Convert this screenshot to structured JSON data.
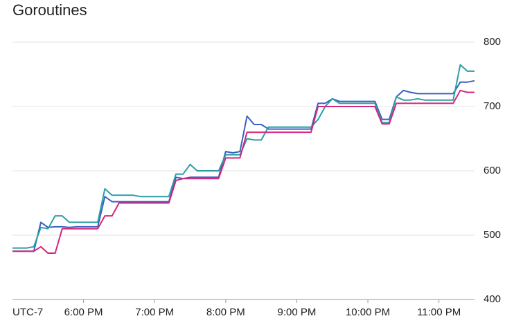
{
  "chart_data": {
    "type": "line",
    "title": "Goroutines",
    "timezone": "UTC-7",
    "x": [
      17,
      17.1,
      17.2,
      17.3,
      17.4,
      17.5,
      17.6,
      17.7,
      17.8,
      17.9,
      18,
      18.1,
      18.2,
      18.3,
      18.4,
      18.5,
      18.6,
      18.7,
      18.8,
      18.9,
      19,
      19.1,
      19.2,
      19.3,
      19.4,
      19.5,
      19.6,
      19.7,
      19.8,
      19.9,
      20,
      20.1,
      20.2,
      20.3,
      20.4,
      20.5,
      20.6,
      20.7,
      20.8,
      20.9,
      21,
      21.1,
      21.2,
      21.3,
      21.4,
      21.5,
      21.6,
      21.7,
      21.8,
      21.9,
      22,
      22.1,
      22.2,
      22.3,
      22.4,
      22.5,
      22.6,
      22.7,
      22.8,
      22.9,
      23,
      23.1,
      23.2,
      23.3,
      23.4,
      23.5
    ],
    "series": [
      {
        "color": "#3a5fc4",
        "values": [
          475,
          475,
          475,
          475,
          520,
          512,
          513,
          513,
          512,
          513,
          513,
          513,
          513,
          560,
          552,
          552,
          552,
          552,
          552,
          552,
          552,
          552,
          552,
          590,
          588,
          590,
          590,
          590,
          590,
          590,
          630,
          628,
          630,
          685,
          672,
          672,
          665,
          665,
          665,
          665,
          665,
          665,
          665,
          705,
          705,
          712,
          708,
          708,
          708,
          708,
          708,
          708,
          680,
          680,
          715,
          725,
          722,
          720,
          720,
          720,
          720,
          720,
          720,
          738,
          738,
          740
        ]
      },
      {
        "color": "#2a9ea3",
        "values": [
          480,
          480,
          480,
          482,
          512,
          510,
          530,
          530,
          520,
          520,
          520,
          520,
          520,
          572,
          562,
          562,
          562,
          562,
          560,
          560,
          560,
          560,
          560,
          595,
          595,
          610,
          600,
          600,
          600,
          600,
          625,
          625,
          625,
          650,
          648,
          648,
          668,
          668,
          668,
          668,
          668,
          668,
          668,
          680,
          700,
          712,
          705,
          705,
          705,
          705,
          705,
          705,
          675,
          675,
          715,
          710,
          710,
          712,
          710,
          710,
          710,
          710,
          710,
          765,
          755,
          755
        ]
      },
      {
        "color": "#d6247b",
        "values": [
          475,
          475,
          475,
          475,
          482,
          472,
          472,
          510,
          510,
          510,
          510,
          510,
          510,
          530,
          530,
          550,
          550,
          550,
          550,
          550,
          550,
          550,
          550,
          585,
          588,
          588,
          588,
          588,
          588,
          588,
          620,
          620,
          620,
          660,
          660,
          660,
          660,
          660,
          660,
          660,
          660,
          660,
          660,
          700,
          700,
          700,
          700,
          700,
          700,
          700,
          700,
          700,
          673,
          673,
          705,
          705,
          705,
          705,
          705,
          705,
          705,
          705,
          705,
          725,
          722,
          722
        ]
      }
    ],
    "xlim": [
      17,
      23.5
    ],
    "xticks": [
      {
        "value": 18,
        "label": "6:00 PM"
      },
      {
        "value": 19,
        "label": "7:00 PM"
      },
      {
        "value": 20,
        "label": "8:00 PM"
      },
      {
        "value": 21,
        "label": "9:00 PM"
      },
      {
        "value": 22,
        "label": "10:00 PM"
      },
      {
        "value": 23,
        "label": "11:00 PM"
      }
    ],
    "ylim": [
      400,
      800
    ],
    "yticks": [
      400,
      500,
      600,
      700,
      800
    ],
    "grid": true
  }
}
